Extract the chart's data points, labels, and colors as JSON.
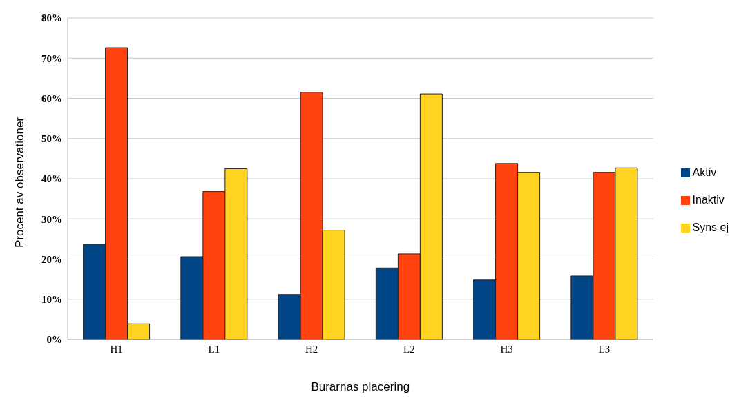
{
  "chart_data": {
    "type": "bar",
    "xlabel": "Burarnas placering",
    "ylabel": "Procent av observationer",
    "categories": [
      "H1",
      "L1",
      "H2",
      "L2",
      "H3",
      "L3"
    ],
    "series": [
      {
        "name": "Aktiv",
        "color": "#004586",
        "values": [
          23.7,
          20.6,
          11.2,
          17.8,
          14.8,
          15.8
        ]
      },
      {
        "name": "Inaktiv",
        "color": "#ff420e",
        "values": [
          72.6,
          36.8,
          61.5,
          21.3,
          43.8,
          41.6
        ]
      },
      {
        "name": "Syns ej",
        "color": "#ffd320",
        "values": [
          3.9,
          42.5,
          27.2,
          61.1,
          41.6,
          42.7
        ]
      }
    ],
    "ylim": [
      0,
      80
    ],
    "yticks": [
      {
        "value": 0,
        "label": "0%"
      },
      {
        "value": 10,
        "label": "10%"
      },
      {
        "value": 20,
        "label": "20%"
      },
      {
        "value": 30,
        "label": "30%"
      },
      {
        "value": 40,
        "label": "40%"
      },
      {
        "value": 50,
        "label": "50%"
      },
      {
        "value": 60,
        "label": "60%"
      },
      {
        "value": 70,
        "label": "70%"
      },
      {
        "value": 80,
        "label": "80%"
      }
    ],
    "grid": "y",
    "legend": "right"
  }
}
